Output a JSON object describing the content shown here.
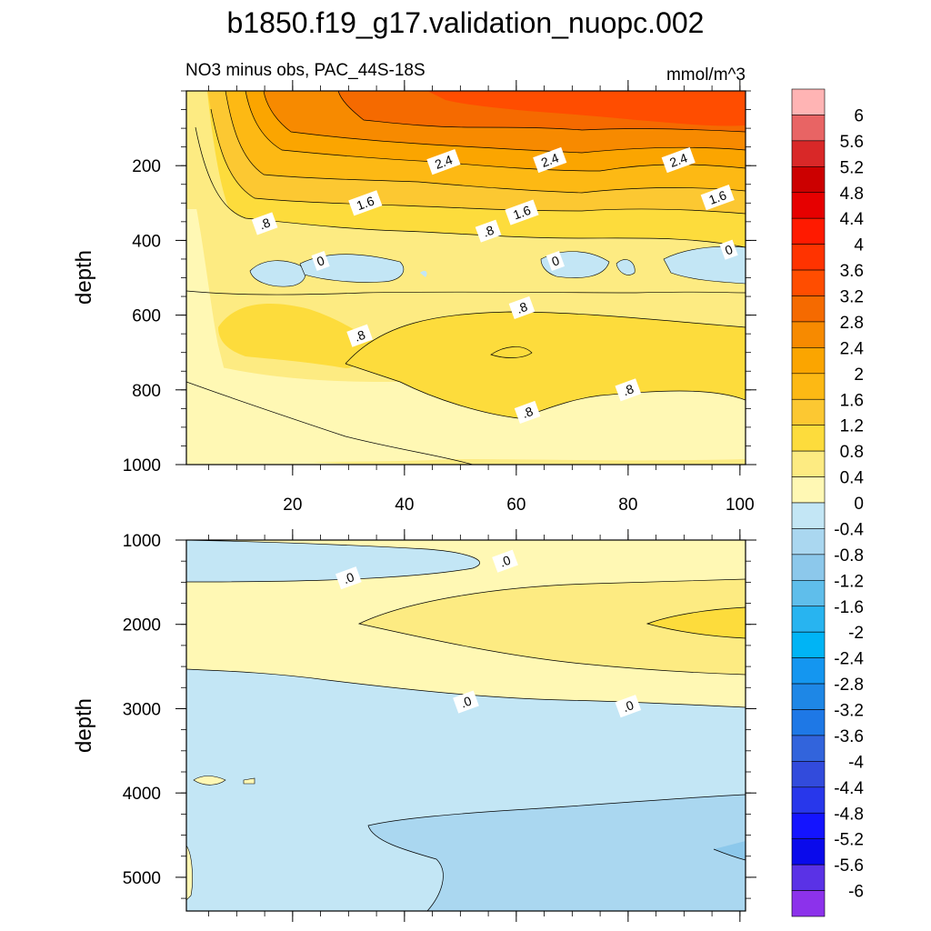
{
  "title": "b1850.f19_g17.validation_nuopc.002",
  "chart_data": [
    {
      "type": "heatmap",
      "subtitle": "NO3 minus obs, PAC_44S-18S",
      "units": "mmol/m^3",
      "ylabel": "depth",
      "y_reversed": true,
      "xlim": [
        1,
        101
      ],
      "ylim": [
        0,
        1000
      ],
      "x_ticks": [
        20,
        40,
        60,
        80,
        100
      ],
      "y_ticks": [
        200,
        400,
        600,
        800,
        1000
      ],
      "contour_labels": [
        {
          "text": "2.4",
          "x": 47,
          "y": 190
        },
        {
          "text": "2.4",
          "x": 66,
          "y": 185
        },
        {
          "text": "2.4",
          "x": 89,
          "y": 185
        },
        {
          "text": "1.6",
          "x": 33,
          "y": 300
        },
        {
          "text": "1.6",
          "x": 61,
          "y": 325
        },
        {
          "text": "1.6",
          "x": 96,
          "y": 285
        },
        {
          "text": ".8",
          "x": 15,
          "y": 355
        },
        {
          "text": ".8",
          "x": 55,
          "y": 375
        },
        {
          "text": ".8",
          "x": 61,
          "y": 580
        },
        {
          "text": ".8",
          "x": 32,
          "y": 655
        },
        {
          "text": ".8",
          "x": 80,
          "y": 800
        },
        {
          "text": ".8",
          "x": 62,
          "y": 860
        },
        {
          "text": "0",
          "x": 25,
          "y": 455
        },
        {
          "text": "0",
          "x": 67,
          "y": 455
        },
        {
          "text": "0",
          "x": 98,
          "y": 425
        }
      ]
    },
    {
      "type": "heatmap",
      "ylabel": "depth",
      "y_reversed": true,
      "xlim": [
        1,
        101
      ],
      "ylim": [
        1000,
        5400
      ],
      "y_ticks": [
        1000,
        2000,
        3000,
        4000,
        5000
      ],
      "contour_labels": [
        {
          "text": ".0",
          "x": 30,
          "y": 1450
        },
        {
          "text": ".0",
          "x": 58,
          "y": 1250
        },
        {
          "text": ".0",
          "x": 51,
          "y": 2920
        },
        {
          "text": ".0",
          "x": 80,
          "y": 2970
        }
      ]
    }
  ],
  "colorbar": {
    "labels": [
      "6",
      "5.6",
      "5.2",
      "4.8",
      "4.4",
      "4",
      "3.6",
      "3.2",
      "2.8",
      "2.4",
      "2",
      "1.6",
      "1.2",
      "0.8",
      "0.4",
      "0",
      "-0.4",
      "-0.8",
      "-1.2",
      "-1.6",
      "-2",
      "-2.4",
      "-2.8",
      "-3.2",
      "-3.6",
      "-4",
      "-4.4",
      "-4.8",
      "-5.2",
      "-5.6",
      "-6"
    ],
    "colors": [
      "#ffb4b4",
      "#e86464",
      "#d92828",
      "#cc0000",
      "#e60000",
      "#ff1a00",
      "#ff3300",
      "#ff4d00",
      "#f56a00",
      "#f78a00",
      "#fba500",
      "#fdb914",
      "#fcc832",
      "#fddc3c",
      "#fdeb82",
      "#fff8b4",
      "#c3e6f5",
      "#aad7f0",
      "#8cc8eb",
      "#5fbeeb",
      "#28b4f0",
      "#00b4f5",
      "#1496f0",
      "#1e87e6",
      "#1e78e6",
      "#3264dc",
      "#324bdc",
      "#2837eb",
      "#1414ff",
      "#0a0aeb",
      "#5a32e6",
      "#8c32eb"
    ]
  }
}
